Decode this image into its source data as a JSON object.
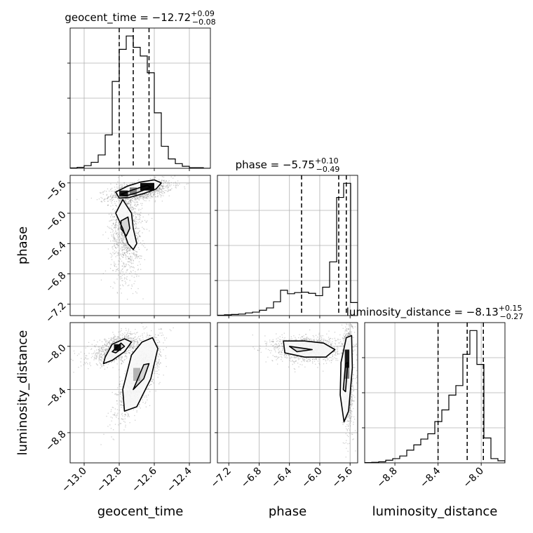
{
  "chart_data": {
    "type": "corner",
    "parameters": [
      "geocent_time",
      "phase",
      "luminosity_distance"
    ],
    "axis_labels": {
      "geocent_time": "geocent_time",
      "phase": "phase",
      "luminosity_distance": "luminosity_distance"
    },
    "ranges": {
      "geocent_time": [
        -13.08,
        -12.28
      ],
      "phase": [
        -7.35,
        -5.5
      ],
      "luminosity_distance": [
        -9.08,
        -7.78
      ]
    },
    "ticks": {
      "geocent_time": [
        -13.0,
        -12.8,
        -12.6,
        -12.4
      ],
      "phase": [
        -7.2,
        -6.8,
        -6.4,
        -6.0,
        -5.6
      ],
      "luminosity_distance": [
        -8.8,
        -8.4,
        -8.0
      ]
    },
    "tick_labels": {
      "geocent_time": [
        "−13.0",
        "−12.8",
        "−12.6",
        "−12.4"
      ],
      "phase": [
        "−7.2",
        "−6.8",
        "−6.4",
        "−6.0",
        "−5.6"
      ],
      "luminosity_distance": [
        "−8.8",
        "−8.4",
        "−8.0"
      ]
    },
    "titles": {
      "geocent_time": {
        "prefix": "geocent_time = ",
        "value": "−12.72",
        "plus": "+0.09",
        "minus": "−0.08"
      },
      "phase": {
        "prefix": "phase = ",
        "value": "−5.75",
        "plus": "+0.10",
        "minus": "−0.49"
      },
      "luminosity_distance": {
        "prefix": "luminosity_distance = ",
        "value": "−8.13",
        "plus": "+0.15",
        "minus": "−0.27"
      }
    },
    "quantiles": {
      "geocent_time": [
        -12.8,
        -12.72,
        -12.63
      ],
      "phase": [
        -6.24,
        -5.75,
        -5.65
      ],
      "luminosity_distance": [
        -8.4,
        -8.13,
        -7.98
      ]
    },
    "histograms": {
      "geocent_time": {
        "edges": [
          -13.08,
          -13.04,
          -13.0,
          -12.96,
          -12.92,
          -12.88,
          -12.84,
          -12.8,
          -12.76,
          -12.72,
          -12.68,
          -12.64,
          -12.6,
          -12.56,
          -12.52,
          -12.48,
          -12.44,
          -12.4,
          -12.36,
          -12.32,
          -12.28
        ],
        "counts": [
          0.5,
          1.5,
          4,
          9,
          20,
          50,
          130,
          178,
          198,
          181,
          168,
          143,
          83,
          33,
          14,
          7,
          3,
          1,
          1,
          0
        ]
      },
      "phase": {
        "edges": [
          -7.35,
          -7.2575,
          -7.165,
          -7.0725,
          -6.98,
          -6.8875,
          -6.795,
          -6.7025,
          -6.61,
          -6.5175,
          -6.425,
          -6.3325,
          -6.24,
          -6.1475,
          -6.055,
          -5.9625,
          -5.87,
          -5.7775,
          -5.685,
          -5.5925,
          -5.5
        ],
        "counts": [
          1,
          2,
          3,
          4,
          7,
          9,
          14,
          20,
          36,
          66,
          57,
          60,
          61,
          58,
          52,
          74,
          140,
          308,
          345,
          34
        ]
      },
      "luminosity_distance": {
        "edges": [
          -9.08,
          -9.015,
          -8.95,
          -8.885,
          -8.82,
          -8.755,
          -8.69,
          -8.625,
          -8.56,
          -8.495,
          -8.43,
          -8.365,
          -8.3,
          -8.235,
          -8.17,
          -8.105,
          -8.04,
          -7.975,
          -7.91,
          -7.845,
          -7.78
        ],
        "counts": [
          0.5,
          1,
          2,
          5,
          8,
          13,
          24,
          34,
          45,
          55,
          78,
          100,
          128,
          146,
          205,
          250,
          186,
          47,
          8,
          4
        ]
      }
    },
    "contours": {
      "phase_vs_geocent_time": [
        [
          [
            -12.82,
            -5.72
          ],
          [
            -12.75,
            -5.64
          ],
          [
            -12.68,
            -5.59
          ],
          [
            -12.6,
            -5.56
          ],
          [
            -12.56,
            -5.6
          ],
          [
            -12.59,
            -5.68
          ],
          [
            -12.66,
            -5.74
          ],
          [
            -12.74,
            -5.79
          ],
          [
            -12.8,
            -5.8
          ]
        ],
        [
          [
            -12.78,
            -5.82
          ],
          [
            -12.73,
            -6.0
          ],
          [
            -12.72,
            -6.2
          ],
          [
            -12.7,
            -6.4
          ],
          [
            -12.72,
            -6.48
          ],
          [
            -12.75,
            -6.4
          ],
          [
            -12.78,
            -6.2
          ],
          [
            -12.82,
            -6.0
          ]
        ],
        [
          [
            -12.79,
            -5.75
          ],
          [
            -12.72,
            -5.69
          ],
          [
            -12.64,
            -5.63
          ],
          [
            -12.62,
            -5.66
          ],
          [
            -12.7,
            -5.73
          ],
          [
            -12.76,
            -5.77
          ]
        ],
        [
          [
            -12.79,
            -6.1
          ],
          [
            -12.75,
            -6.05
          ],
          [
            -12.74,
            -6.2
          ],
          [
            -12.76,
            -6.3
          ],
          [
            -12.79,
            -6.2
          ]
        ]
      ],
      "luminosity_distance_vs_geocent_time": [
        [
          [
            -12.88,
            -8.1
          ],
          [
            -12.84,
            -7.98
          ],
          [
            -12.77,
            -7.93
          ],
          [
            -12.73,
            -7.96
          ],
          [
            -12.77,
            -8.05
          ],
          [
            -12.84,
            -8.13
          ],
          [
            -12.89,
            -8.16
          ]
        ],
        [
          [
            -12.73,
            -8.08
          ],
          [
            -12.67,
            -7.96
          ],
          [
            -12.61,
            -7.92
          ],
          [
            -12.58,
            -8.02
          ],
          [
            -12.62,
            -8.3
          ],
          [
            -12.7,
            -8.56
          ],
          [
            -12.77,
            -8.6
          ],
          [
            -12.78,
            -8.4
          ]
        ],
        [
          [
            -12.84,
            -8.05
          ],
          [
            -12.79,
            -7.97
          ],
          [
            -12.77,
            -8.0
          ],
          [
            -12.82,
            -8.06
          ]
        ],
        [
          [
            -12.72,
            -8.4
          ],
          [
            -12.66,
            -8.17
          ],
          [
            -12.63,
            -8.16
          ],
          [
            -12.66,
            -8.3
          ]
        ]
      ],
      "luminosity_distance_vs_phase": [
        [
          [
            -6.48,
            -7.95
          ],
          [
            -6.2,
            -7.95
          ],
          [
            -5.95,
            -7.97
          ],
          [
            -5.8,
            -8.03
          ],
          [
            -5.92,
            -8.1
          ],
          [
            -6.2,
            -8.1
          ],
          [
            -6.46,
            -8.06
          ]
        ],
        [
          [
            -5.72,
            -8.15
          ],
          [
            -5.65,
            -7.92
          ],
          [
            -5.58,
            -7.9
          ],
          [
            -5.57,
            -8.2
          ],
          [
            -5.62,
            -8.6
          ],
          [
            -5.68,
            -8.7
          ],
          [
            -5.73,
            -8.45
          ]
        ],
        [
          [
            -6.4,
            -8.0
          ],
          [
            -6.2,
            -8.02
          ],
          [
            -6.1,
            -8.03
          ],
          [
            -6.3,
            -8.05
          ]
        ],
        [
          [
            -5.69,
            -8.4
          ],
          [
            -5.66,
            -8.16
          ],
          [
            -5.63,
            -8.15
          ],
          [
            -5.66,
            -8.42
          ]
        ]
      ]
    },
    "dense_regions": {
      "phase_vs_geocent_time": [
        {
          "x": [
            -12.8,
            -12.75
          ],
          "y": [
            -5.78,
            -5.7
          ],
          "level": 0.9
        },
        {
          "x": [
            -12.74,
            -12.7
          ],
          "y": [
            -5.76,
            -5.66
          ],
          "level": 0.5
        },
        {
          "x": [
            -12.68,
            -12.6
          ],
          "y": [
            -5.7,
            -5.6
          ],
          "level": 0.95
        }
      ],
      "luminosity_distance_vs_geocent_time": [
        {
          "x": [
            -12.83,
            -12.79
          ],
          "y": [
            -8.04,
            -7.98
          ],
          "level": 0.95
        },
        {
          "x": [
            -12.72,
            -12.68
          ],
          "y": [
            -8.32,
            -8.2
          ],
          "level": 0.3
        }
      ],
      "luminosity_distance_vs_phase": [
        {
          "x": [
            -5.67,
            -5.61
          ],
          "y": [
            -8.2,
            -8.03
          ],
          "level": 0.9
        },
        {
          "x": [
            -5.67,
            -5.61
          ],
          "y": [
            -8.3,
            -8.2
          ],
          "level": 0.5
        }
      ]
    },
    "point_clouds": {
      "phase_vs_geocent_time": [
        {
          "cx": -12.68,
          "cy": -5.7,
          "sx": 0.09,
          "sy": 0.07,
          "rho": 0.5,
          "n": 1100
        },
        {
          "cx": -12.76,
          "cy": -6.2,
          "sx": 0.045,
          "sy": 0.32,
          "rho": 0.0,
          "n": 1200
        }
      ],
      "luminosity_distance_vs_geocent_time": [
        {
          "cx": -12.82,
          "cy": -8.02,
          "sx": 0.08,
          "sy": 0.07,
          "rho": 0.55,
          "n": 900
        },
        {
          "cx": -12.69,
          "cy": -8.28,
          "sx": 0.06,
          "sy": 0.17,
          "rho": 0.75,
          "n": 1400
        }
      ],
      "luminosity_distance_vs_phase": [
        {
          "cx": -6.18,
          "cy": -8.02,
          "sx": 0.22,
          "sy": 0.06,
          "rho": 0.0,
          "n": 1200
        },
        {
          "cx": -5.63,
          "cy": -8.25,
          "sx": 0.035,
          "sy": 0.25,
          "rho": 0.0,
          "n": 1100
        }
      ]
    },
    "grid": true
  }
}
